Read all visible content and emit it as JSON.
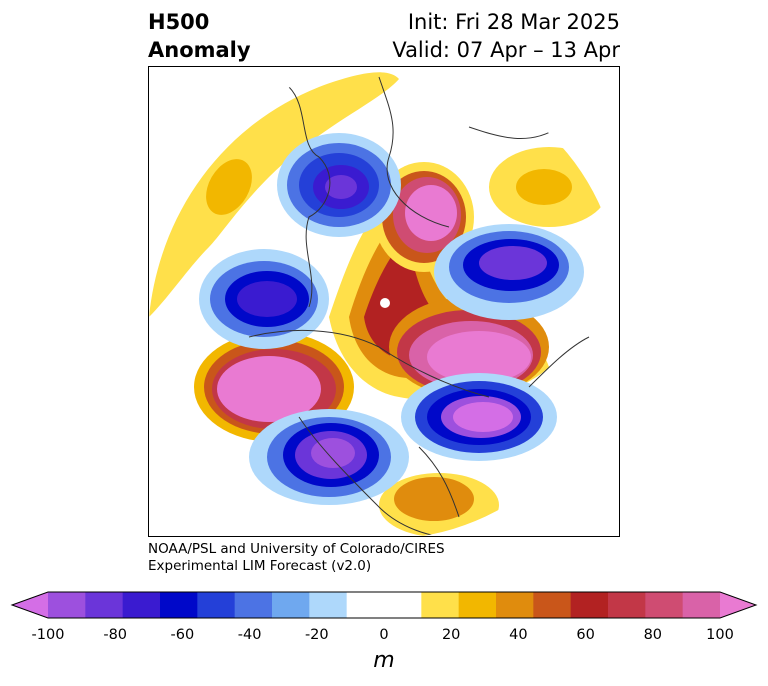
{
  "title": {
    "left_line1": "H500",
    "left_line2": "Anomaly",
    "right_line1": "Init: Fri 28 Mar 2025",
    "right_line2": "Valid: 07 Apr – 13 Apr"
  },
  "credit": {
    "line1": "NOAA/PSL and University of Colorado/CIRES",
    "line2": "Experimental LIM Forecast (v2.0)"
  },
  "colorbar": {
    "unit": "m",
    "ticks": [
      "-100",
      "-80",
      "-60",
      "-40",
      "-20",
      "0",
      "20",
      "40",
      "60",
      "80",
      "100"
    ],
    "colors": [
      "#d46ee6",
      "#9d50de",
      "#6b35d9",
      "#3a1bd0",
      "#0008c9",
      "#2440d8",
      "#4c73e4",
      "#6fa8ef",
      "#aed8fb",
      "#ffffff",
      "#ffffff",
      "#ffe04a",
      "#f2b700",
      "#e08c0d",
      "#c9561a",
      "#b22222",
      "#c23747",
      "#cf4c72",
      "#d962a8",
      "#e97ad2"
    ]
  }
}
